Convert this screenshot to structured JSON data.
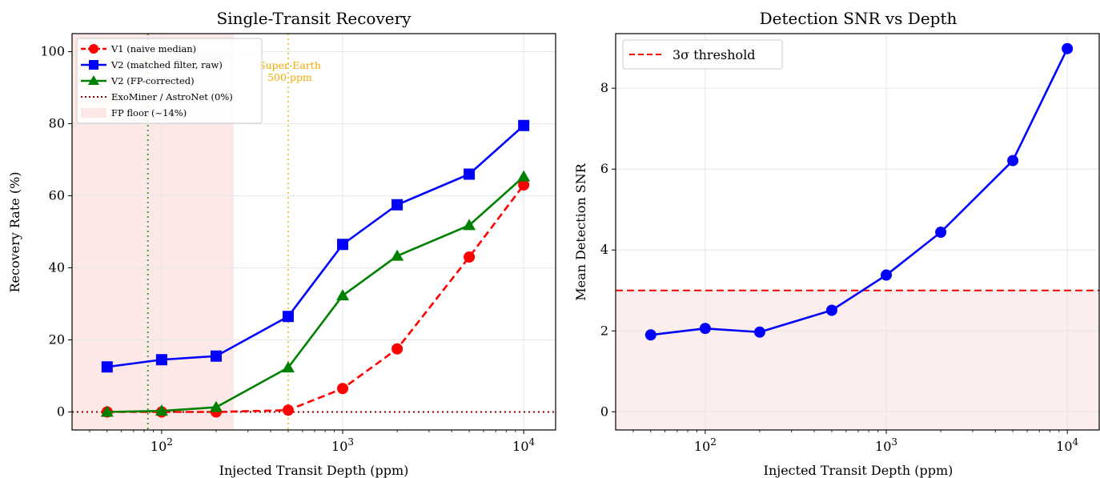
{
  "chart_data": [
    {
      "type": "line",
      "title": "Single-Transit Recovery",
      "xlabel": "Injected Transit Depth (ppm)",
      "ylabel": "Recovery Rate (%)",
      "xscale": "log",
      "xlim": [
        32,
        15000
      ],
      "ylim": [
        -5,
        105
      ],
      "yticks": [
        0,
        20,
        40,
        60,
        80,
        100
      ],
      "xticks": [
        {
          "value": 100,
          "label": "10",
          "exp": "2"
        },
        {
          "value": 1000,
          "label": "10",
          "exp": "3"
        },
        {
          "value": 10000,
          "label": "10",
          "exp": "4"
        }
      ],
      "grid": true,
      "legend_position": "top-left",
      "series": [
        {
          "name": "V1 (naive median)",
          "color": "#ff0000",
          "marker": "circle",
          "linestyle": "dashed",
          "x": [
            50,
            100,
            200,
            500,
            1000,
            2000,
            5000,
            10000
          ],
          "y": [
            0,
            0,
            0,
            0.5,
            6.5,
            17.5,
            43,
            63
          ]
        },
        {
          "name": "V2 (matched filter, raw)",
          "color": "#0000ff",
          "marker": "square",
          "linestyle": "solid",
          "x": [
            50,
            100,
            200,
            500,
            1000,
            2000,
            5000,
            10000
          ],
          "y": [
            12.5,
            14.5,
            15.5,
            26.5,
            46.5,
            57.5,
            66,
            79.5
          ]
        },
        {
          "name": "V2 (FP-corrected)",
          "color": "#008000",
          "marker": "triangle",
          "linestyle": "solid",
          "x": [
            50,
            100,
            200,
            500,
            1000,
            2000,
            5000,
            10000
          ],
          "y": [
            0,
            0.3,
            1.3,
            12.3,
            32.3,
            43.3,
            51.8,
            65.3
          ]
        }
      ],
      "reference_lines": [
        {
          "name": "ExoMiner / AstroNet (0%)",
          "orientation": "horizontal",
          "value": 0,
          "color": "#8b0000",
          "linestyle": "dotted"
        },
        {
          "orientation": "vertical",
          "value": 84,
          "color": "#4a9a4a",
          "linestyle": "dotted"
        },
        {
          "orientation": "vertical",
          "value": 500,
          "color": "#f2c94c",
          "linestyle": "dotted",
          "annotation": [
            "Super-Earth",
            "500 ppm"
          ]
        }
      ],
      "shaded_regions": [
        {
          "name": "FP floor (~14%)",
          "x_range": [
            32,
            250
          ],
          "color": "#fde8e8"
        }
      ]
    },
    {
      "type": "line",
      "title": "Detection SNR vs Depth",
      "xlabel": "Injected Transit Depth (ppm)",
      "ylabel": "Mean Detection SNR",
      "xscale": "log",
      "xlim": [
        32,
        15000
      ],
      "ylim": [
        -0.45,
        9.35
      ],
      "yticks": [
        0,
        2,
        4,
        6,
        8
      ],
      "xticks": [
        {
          "value": 100,
          "label": "10",
          "exp": "2"
        },
        {
          "value": 1000,
          "label": "10",
          "exp": "3"
        },
        {
          "value": 10000,
          "label": "10",
          "exp": "4"
        }
      ],
      "grid": true,
      "legend_position": "top-left",
      "series": [
        {
          "color": "#0000ff",
          "marker": "circle",
          "linestyle": "solid",
          "x": [
            50,
            100,
            200,
            500,
            1000,
            2000,
            5000,
            10000
          ],
          "y": [
            1.9,
            2.06,
            1.97,
            2.51,
            3.38,
            4.44,
            6.21,
            8.98
          ]
        }
      ],
      "reference_lines": [
        {
          "name": "3σ threshold",
          "orientation": "horizontal",
          "value": 3,
          "color": "#ff0000",
          "linestyle": "dashed"
        }
      ],
      "shaded_regions": [
        {
          "y_range": [
            -0.45,
            3
          ],
          "color": "#fdeeee"
        }
      ]
    }
  ]
}
